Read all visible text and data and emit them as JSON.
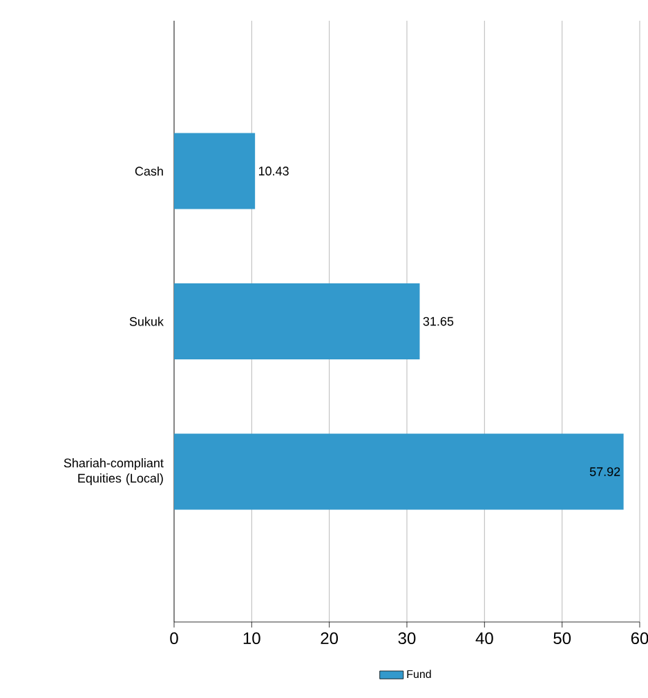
{
  "chart_data": {
    "type": "bar",
    "orientation": "horizontal",
    "categories": [
      "Cash",
      "Sukuk",
      "Shariah-compliant Equities (Local)"
    ],
    "series": [
      {
        "name": "Fund",
        "color": "#3399cc",
        "values": [
          10.43,
          31.65,
          57.92
        ]
      }
    ],
    "xlim": [
      0,
      60
    ],
    "xticks": [
      0,
      10,
      20,
      30,
      40,
      50,
      60
    ],
    "grid": "x",
    "legend": "bottom",
    "data_labels": true
  }
}
